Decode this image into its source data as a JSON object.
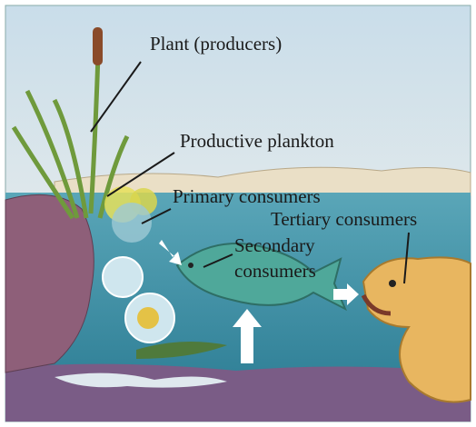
{
  "labels": [
    {
      "text": "Plant (producers)"
    },
    {
      "text": "Productive plankton"
    },
    {
      "text": "Primary consumers"
    },
    {
      "lines": [
        "Secondary",
        "consumers"
      ]
    },
    {
      "text": "Tertiary consumers"
    }
  ]
}
